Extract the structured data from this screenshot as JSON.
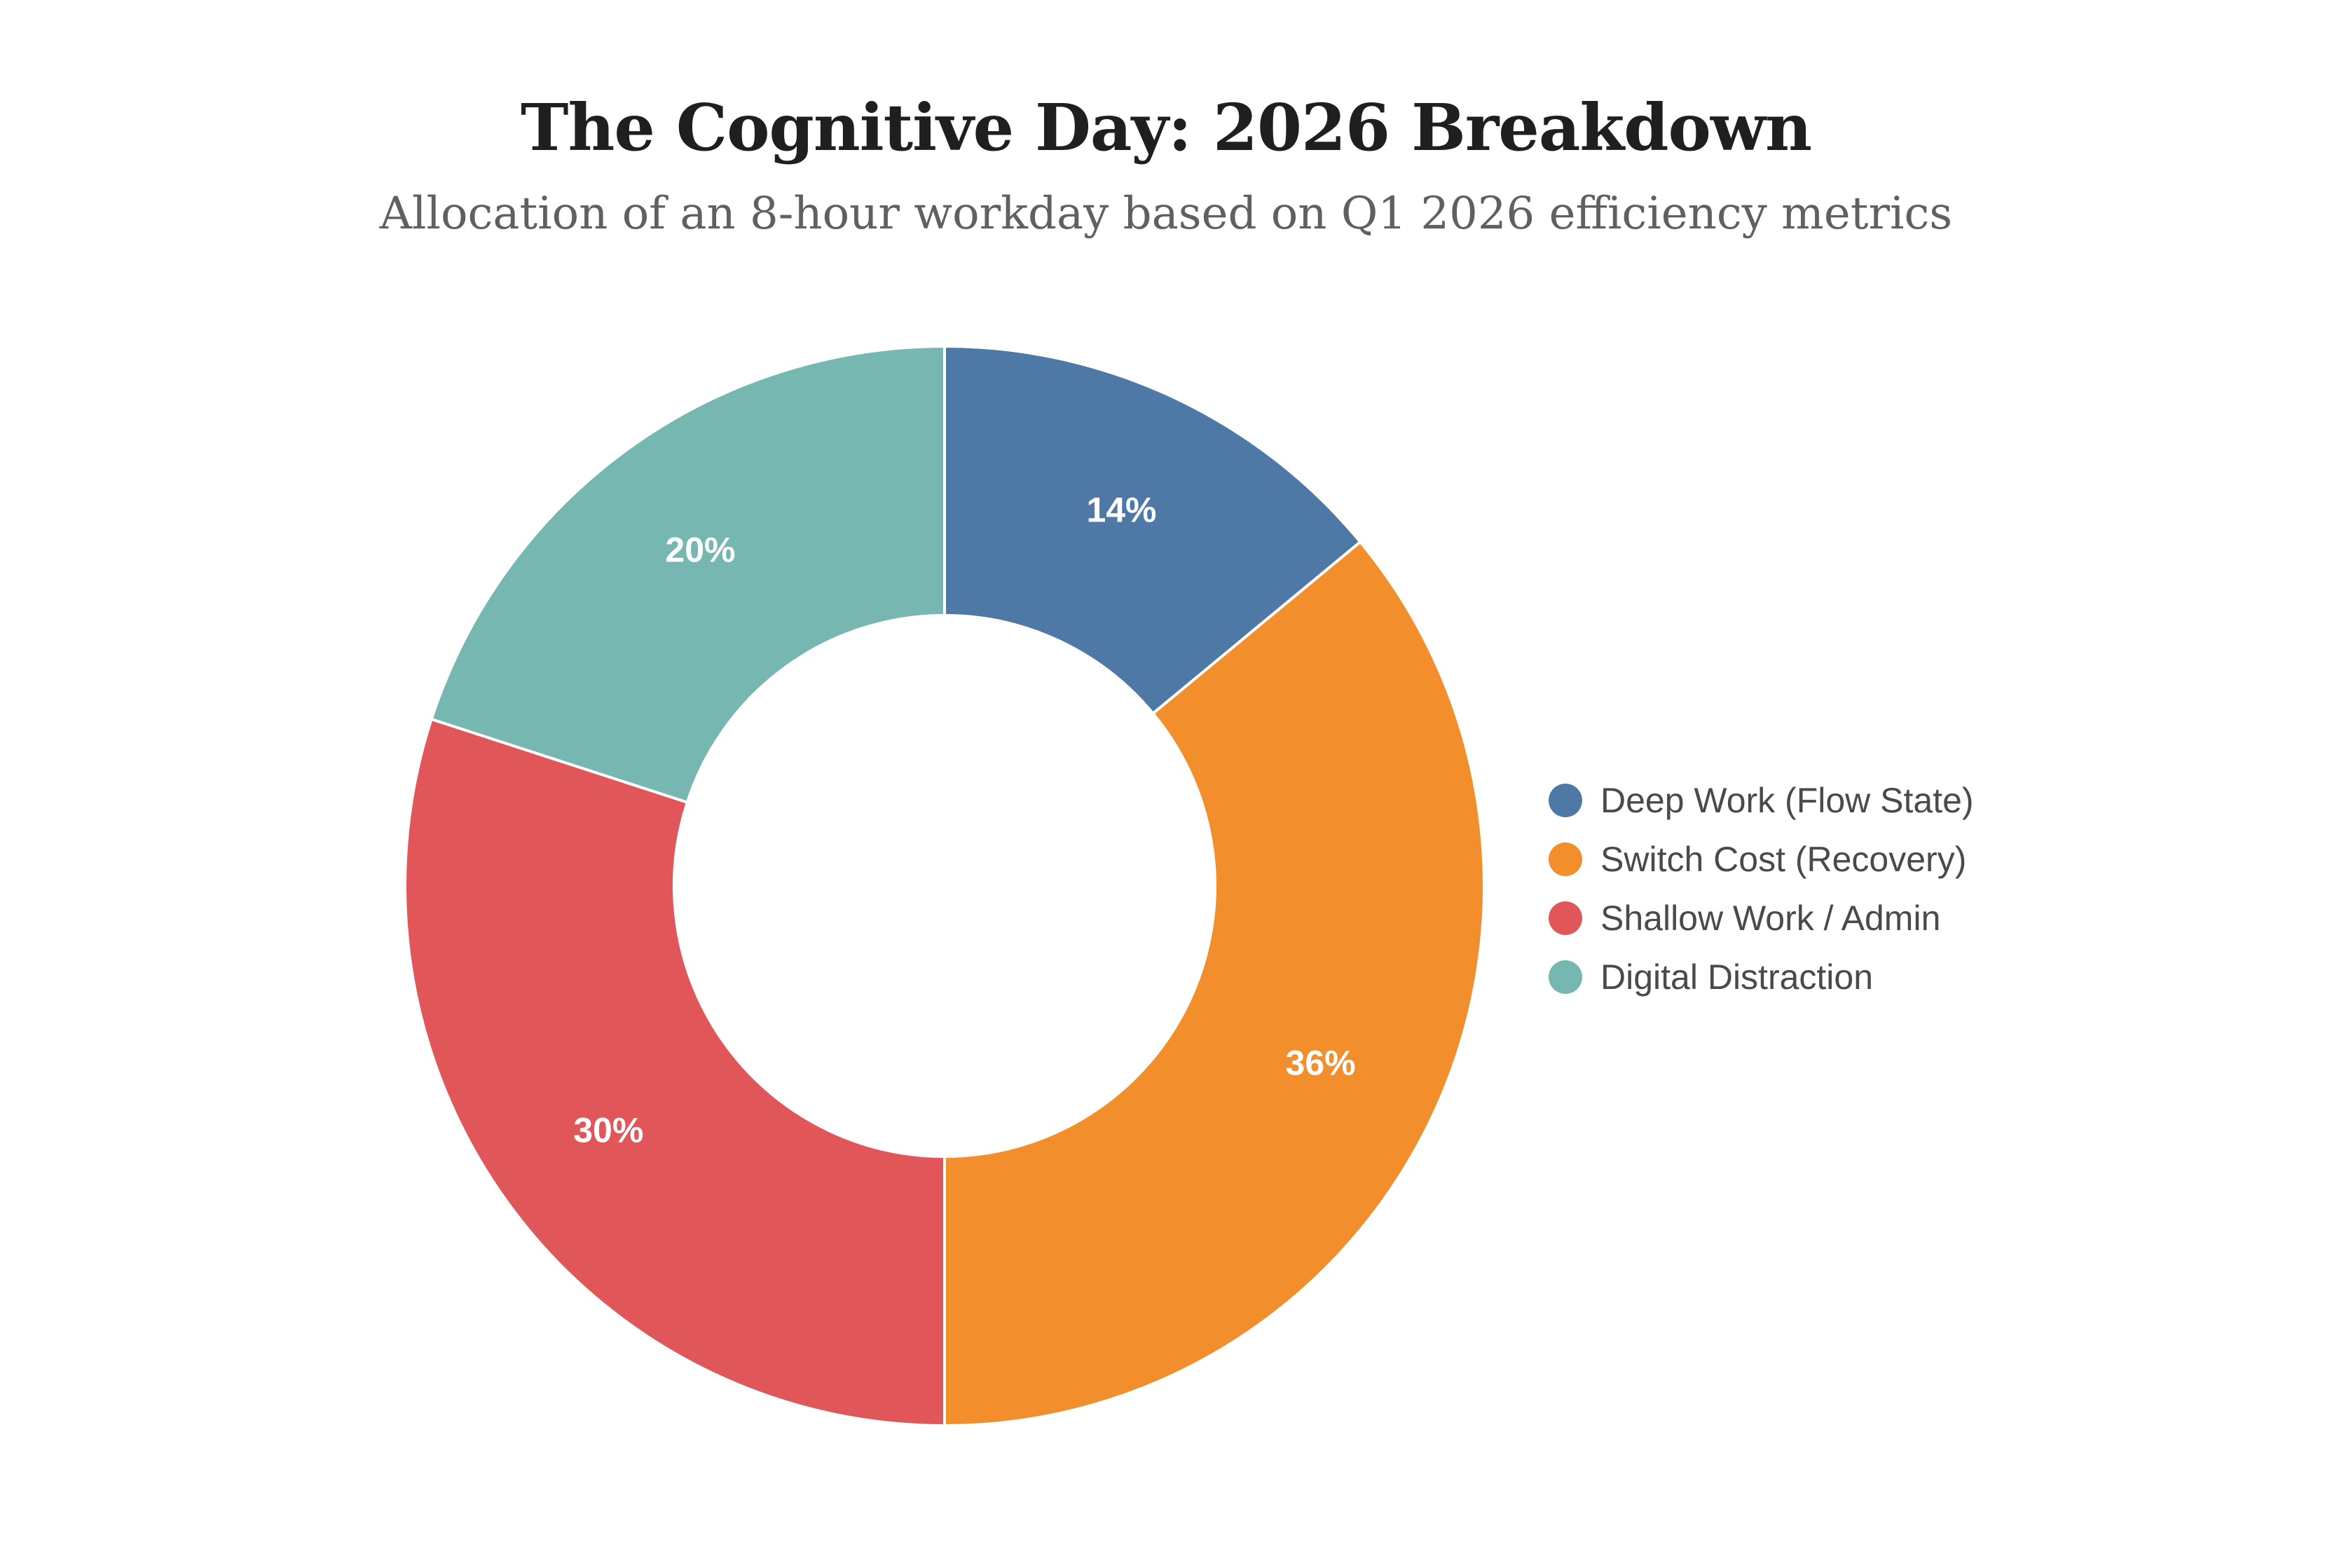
{
  "chart_data": {
    "type": "pie",
    "donut": true,
    "title": "The Cognitive Day: 2026 Breakdown",
    "subtitle": "Allocation of an 8-hour workday based on Q1 2026 efficiency metrics",
    "legend_position": "right",
    "categories": [
      "Deep Work (Flow State)",
      "Switch Cost (Recovery)",
      "Shallow Work / Admin",
      "Digital Distraction"
    ],
    "values": [
      14,
      36,
      30,
      20
    ],
    "labels": [
      "14%",
      "36%",
      "30%",
      "20%"
    ],
    "colors": [
      "#4e79a7",
      "#f28e2b",
      "#e15759",
      "#76b7b2"
    ]
  }
}
